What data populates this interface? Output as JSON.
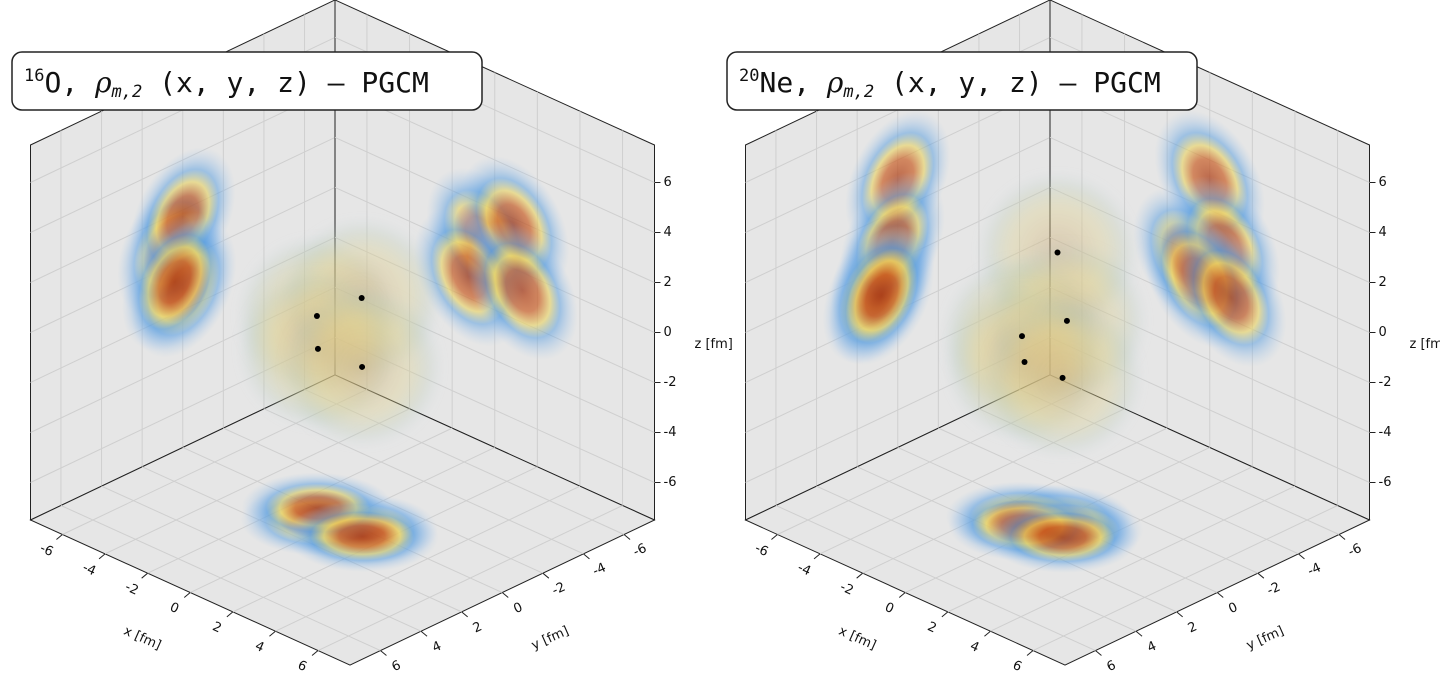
{
  "chart_data": [
    {
      "type": "density3d",
      "title": [
        "16",
        "O, ",
        "ρ",
        "m,2",
        " (x, y, z) – PGCM"
      ],
      "xlabel": "x [fm]",
      "ylabel": "y [fm]",
      "zlabel": "z [fm]",
      "xlim": [
        -7.5,
        7.5
      ],
      "ylim": [
        -7.5,
        7.5
      ],
      "zlim": [
        -7.5,
        7.5
      ],
      "xticks": [
        -6,
        -4,
        -2,
        0,
        2,
        4,
        6
      ],
      "yticks": [
        -6,
        -4,
        -2,
        0,
        2,
        4,
        6
      ],
      "zticks": [
        -6,
        -4,
        -2,
        0,
        2,
        4,
        6
      ],
      "points": [
        [
          -0.6,
          0.63,
          0.67
        ],
        [
          0.9,
          0.0,
          1.73
        ],
        [
          -1.2,
          -0.05,
          -1.14
        ],
        [
          1.3,
          0.4,
          -0.72
        ]
      ]
    },
    {
      "type": "density3d",
      "title": [
        "20",
        "Ne, ",
        "ρ",
        "m,2",
        " (x, y, z) – PGCM"
      ],
      "xlabel": "x [fm]",
      "ylabel": "y [fm]",
      "zlabel": "z [fm]",
      "xlim": [
        -7.5,
        7.5
      ],
      "ylim": [
        -7.5,
        7.5
      ],
      "zlim": [
        -7.5,
        7.5
      ],
      "xticks": [
        -6,
        -4,
        -2,
        0,
        2,
        4,
        6
      ],
      "yticks": [
        -6,
        -4,
        -2,
        0,
        2,
        4,
        6
      ],
      "zticks": [
        -6,
        -4,
        -2,
        0,
        2,
        4,
        6
      ],
      "points": [
        [
          0.0,
          0.0,
          3.2
        ],
        [
          -1.0,
          0.7,
          -0.26
        ],
        [
          0.7,
          0.27,
          0.84
        ],
        [
          -0.5,
          1.1,
          -0.95
        ],
        [
          1.0,
          0.8,
          -1.12
        ]
      ]
    }
  ]
}
